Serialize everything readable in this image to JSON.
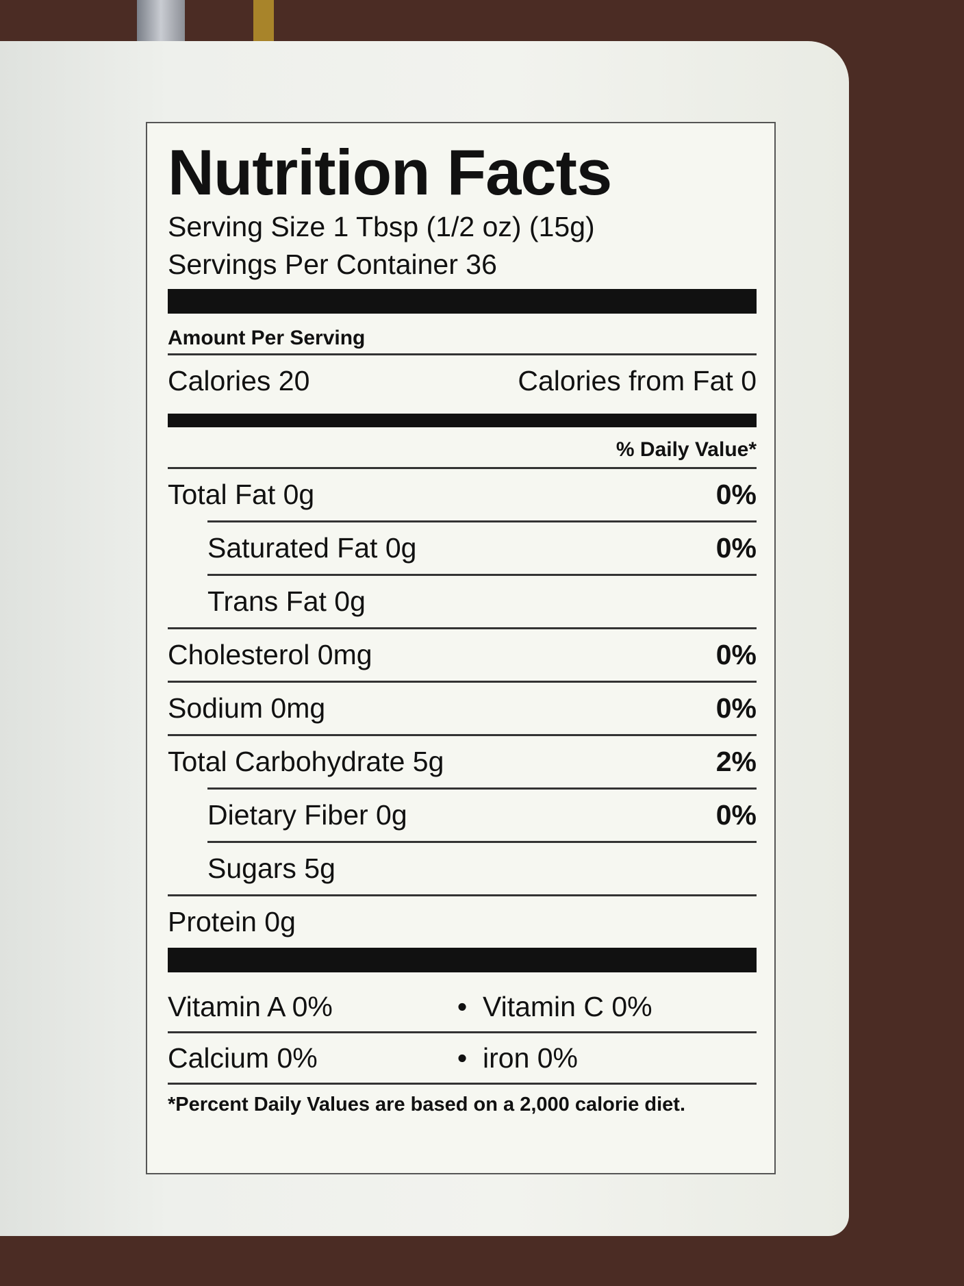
{
  "label": {
    "title": "Nutrition Facts",
    "serving_size": "Serving Size 1 Tbsp (1/2 oz) (15g)",
    "servings_per_container": "Servings Per Container 36",
    "amount_per_serving": "Amount Per Serving",
    "calories": "Calories 20",
    "calories_from_fat": "Calories from Fat 0",
    "daily_value_header": "% Daily Value*",
    "nutrients": [
      {
        "name": "Total Fat 0g",
        "dv": "0%"
      },
      {
        "name": "Saturated Fat 0g",
        "dv": "0%"
      },
      {
        "name": "Trans Fat 0g",
        "dv": ""
      },
      {
        "name": "Cholesterol 0mg",
        "dv": "0%"
      },
      {
        "name": "Sodium 0mg",
        "dv": "0%"
      },
      {
        "name": "Total Carbohydrate 5g",
        "dv": "2%"
      },
      {
        "name": "Dietary Fiber 0g",
        "dv": "0%"
      },
      {
        "name": "Sugars 5g",
        "dv": ""
      },
      {
        "name": "Protein 0g",
        "dv": ""
      }
    ],
    "vitamins": [
      {
        "left": "Vitamin A 0%",
        "sep": "•",
        "right": "Vitamin C 0%"
      },
      {
        "left": "Calcium 0%",
        "sep": "•",
        "right": "iron 0%"
      }
    ],
    "footnote": "*Percent Daily Values are based on a 2,000 calorie diet."
  },
  "colors": {
    "background": "#4b2c24",
    "label": "#f2f3ee",
    "ink": "#111111"
  }
}
